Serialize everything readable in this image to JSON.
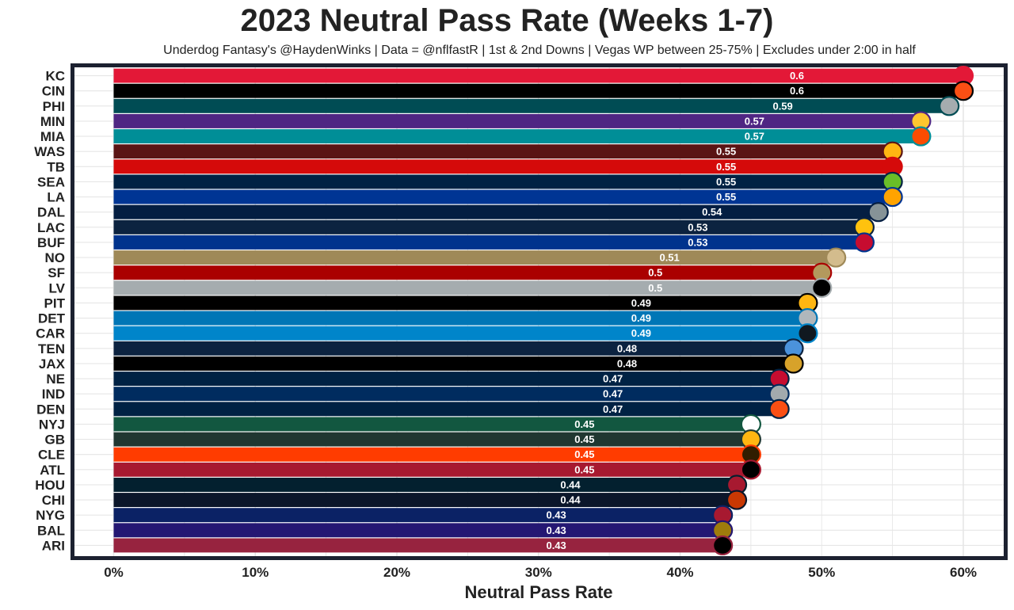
{
  "title": "2023 Neutral Pass Rate (Weeks 1-7)",
  "subtitle": "Underdog Fantasy's @HaydenWinks | Data = @nflfastR | 1st & 2nd Downs | Vegas WP between 25-75% | Excludes under 2:00 in half",
  "chart_data": {
    "type": "bar",
    "orientation": "horizontal",
    "title": "2023 Neutral Pass Rate (Weeks 1-7)",
    "xlabel": "Neutral Pass Rate",
    "ylabel": "",
    "xlim": [
      -0.03,
      0.63
    ],
    "xticks": [
      0,
      0.1,
      0.2,
      0.3,
      0.4,
      0.5,
      0.6
    ],
    "xtick_labels": [
      "0%",
      "10%",
      "20%",
      "30%",
      "40%",
      "50%",
      "60%"
    ],
    "grid": true,
    "categories": [
      "KC",
      "CIN",
      "PHI",
      "MIN",
      "MIA",
      "WAS",
      "TB",
      "SEA",
      "LA",
      "DAL",
      "LAC",
      "BUF",
      "NO",
      "SF",
      "LV",
      "PIT",
      "DET",
      "CAR",
      "TEN",
      "JAX",
      "NE",
      "IND",
      "DEN",
      "NYJ",
      "GB",
      "CLE",
      "ATL",
      "HOU",
      "CHI",
      "NYG",
      "BAL",
      "ARI"
    ],
    "values": [
      0.6,
      0.6,
      0.59,
      0.57,
      0.57,
      0.55,
      0.55,
      0.55,
      0.55,
      0.54,
      0.53,
      0.53,
      0.51,
      0.5,
      0.5,
      0.49,
      0.49,
      0.49,
      0.48,
      0.48,
      0.47,
      0.47,
      0.47,
      0.45,
      0.45,
      0.45,
      0.45,
      0.44,
      0.44,
      0.43,
      0.43,
      0.43
    ],
    "value_labels": [
      "0.6",
      "0.6",
      "0.59",
      "0.57",
      "0.57",
      "0.55",
      "0.55",
      "0.55",
      "0.55",
      "0.54",
      "0.53",
      "0.53",
      "0.51",
      "0.5",
      "0.5",
      "0.49",
      "0.49",
      "0.49",
      "0.48",
      "0.48",
      "0.47",
      "0.47",
      "0.47",
      "0.45",
      "0.45",
      "0.45",
      "0.45",
      "0.44",
      "0.44",
      "0.43",
      "0.43",
      "0.43"
    ],
    "bar_colors": [
      "#E31837",
      "#000000",
      "#004C54",
      "#4F2683",
      "#008E97",
      "#5A1414",
      "#D50A0A",
      "#002244",
      "#003594",
      "#041E42",
      "#0C2340",
      "#00338D",
      "#9F8958",
      "#AA0000",
      "#A5ACAF",
      "#000000",
      "#0076B6",
      "#0085CA",
      "#0C2340",
      "#000000",
      "#002244",
      "#002C5F",
      "#002244",
      "#125740",
      "#203731",
      "#FF3C00",
      "#A71930",
      "#03202F",
      "#0B162A",
      "#0B2265",
      "#241773",
      "#97233F"
    ],
    "logo_colors": [
      "#E31837",
      "#FB4F14",
      "#A5ACAF",
      "#FFC62F",
      "#FC4C02",
      "#FFB612",
      "#D50A0A",
      "#69BE28",
      "#FFA300",
      "#869397",
      "#FFC20E",
      "#C60C30",
      "#D3BC8D",
      "#B3995D",
      "#000000",
      "#FFB612",
      "#B0B7BC",
      "#101820",
      "#4B92DB",
      "#D7A22A",
      "#C60C30",
      "#A2AAAD",
      "#FB4F14",
      "#ffffff",
      "#FFB612",
      "#311D00",
      "#000000",
      "#A71930",
      "#C83803",
      "#A71930",
      "#9E7C0C",
      "#000000"
    ]
  }
}
